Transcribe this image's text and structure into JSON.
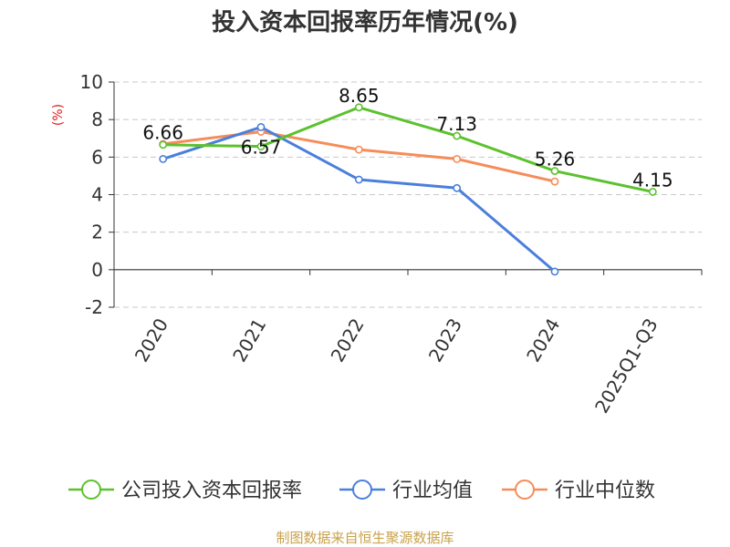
{
  "chart_data": {
    "type": "line",
    "title": "投入资本回报率历年情况(%)",
    "ylabel": "(%)",
    "xlabel": "",
    "categories": [
      "2020",
      "2021",
      "2022",
      "2023",
      "2024",
      "2025Q1-Q3"
    ],
    "ylim": [
      -2,
      10
    ],
    "yticks": [
      -2,
      0,
      2,
      4,
      6,
      8,
      10
    ],
    "grid": true,
    "legend_position": "bottom",
    "series": [
      {
        "name": "公司投入资本回报率",
        "color": "#5cc12e",
        "values": [
          6.66,
          6.57,
          8.65,
          7.13,
          5.26,
          4.15
        ],
        "labels": [
          "6.66",
          "6.57",
          "8.65",
          "7.13",
          "5.26",
          "4.15"
        ]
      },
      {
        "name": "行业均值",
        "color": "#4a7fdc",
        "values": [
          5.9,
          7.6,
          4.8,
          4.35,
          -0.1,
          null
        ]
      },
      {
        "name": "行业中位数",
        "color": "#f58d5a",
        "values": [
          6.7,
          7.35,
          6.4,
          5.9,
          4.7,
          null
        ]
      }
    ]
  },
  "source": "制图数据来自恒生聚源数据库"
}
